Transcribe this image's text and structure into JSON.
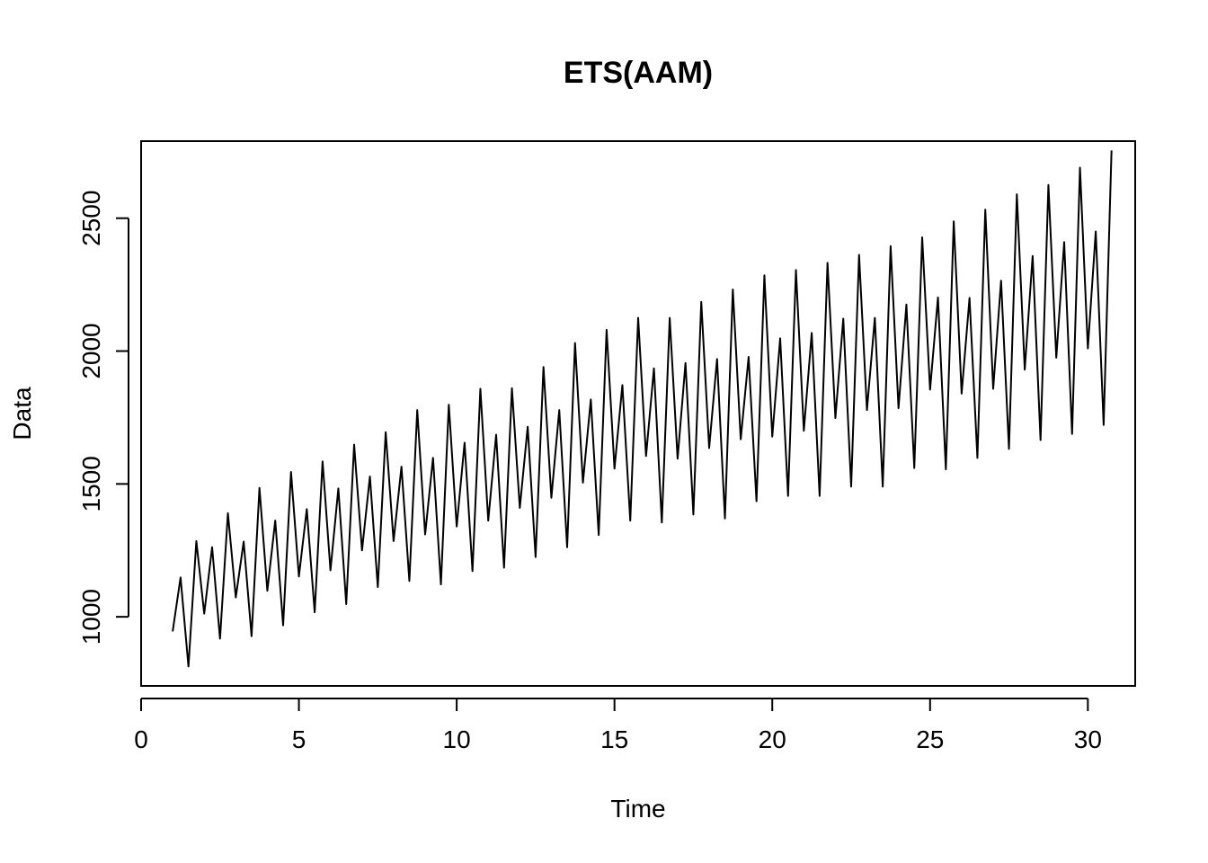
{
  "chart_data": {
    "type": "line",
    "title": "ETS(AAM)",
    "xlabel": "Time",
    "ylabel": "Data",
    "xlim": [
      0,
      31.5
    ],
    "ylim": [
      740,
      2790
    ],
    "x_ticks": [
      0,
      5,
      10,
      15,
      20,
      25,
      30
    ],
    "y_ticks": [
      1000,
      1500,
      2000,
      2500
    ],
    "grid": false,
    "series": [
      {
        "color": "#000000",
        "x_start": 1,
        "x_step": 0.25,
        "values": [
          945,
          1148,
          813,
          1285,
          1012,
          1262,
          918,
          1390,
          1073,
          1283,
          927,
          1485,
          1098,
          1362,
          968,
          1545,
          1152,
          1405,
          1017,
          1585,
          1175,
          1483,
          1048,
          1648,
          1250,
          1528,
          1112,
          1695,
          1285,
          1565,
          1135,
          1778,
          1310,
          1598,
          1122,
          1798,
          1340,
          1655,
          1172,
          1858,
          1362,
          1685,
          1185,
          1860,
          1410,
          1715,
          1225,
          1940,
          1448,
          1778,
          1262,
          2030,
          1505,
          1818,
          1308,
          2080,
          1558,
          1872,
          1362,
          2125,
          1605,
          1935,
          1355,
          2125,
          1595,
          1955,
          1385,
          2185,
          1635,
          1970,
          1370,
          2232,
          1668,
          1978,
          1435,
          2285,
          1678,
          2048,
          1455,
          2305,
          1700,
          2068,
          1455,
          2332,
          1748,
          2122,
          1490,
          2362,
          1778,
          2125,
          1490,
          2395,
          1785,
          2175,
          1560,
          2428,
          1855,
          2202,
          1555,
          2488,
          1840,
          2200,
          1598,
          2532,
          1858,
          2265,
          1632,
          2590,
          1930,
          2358,
          1665,
          2625,
          1975,
          2410,
          1688,
          2690,
          2010,
          2450,
          1722,
          2755
        ]
      }
    ]
  }
}
